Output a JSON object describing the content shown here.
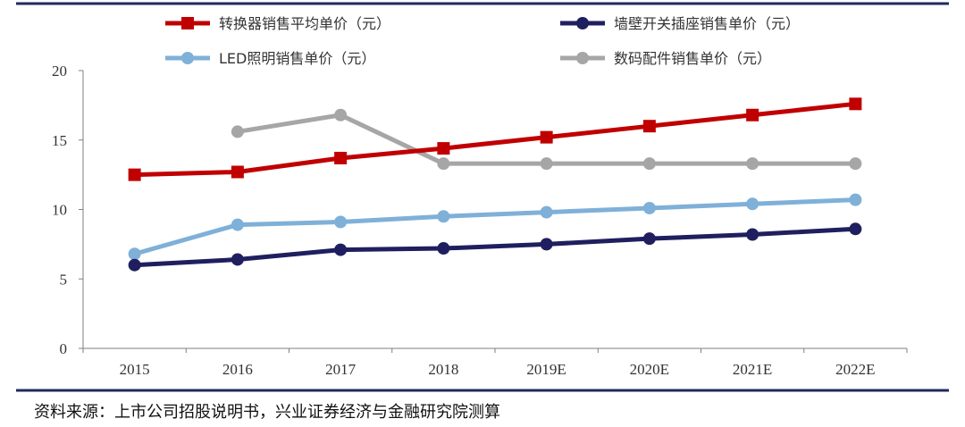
{
  "chart_data": {
    "type": "line",
    "categories": [
      "2015",
      "2016",
      "2017",
      "2018",
      "2019E",
      "2020E",
      "2021E",
      "2022E"
    ],
    "ylim": [
      0,
      20
    ],
    "yticks": [
      0,
      5,
      10,
      15,
      20
    ],
    "grid": false,
    "legend_position": "top",
    "series": [
      {
        "name": "转换器销售平均单价（元）",
        "color": "#C00000",
        "marker": "square",
        "values": [
          12.5,
          12.7,
          13.7,
          14.4,
          15.2,
          16.0,
          16.8,
          17.6
        ]
      },
      {
        "name": "墙壁开关插座销售单价（元）",
        "color": "#1F1F5F",
        "marker": "circle",
        "values": [
          6.0,
          6.4,
          7.1,
          7.2,
          7.5,
          7.9,
          8.2,
          8.6
        ]
      },
      {
        "name": "LED照明销售单价（元）",
        "color": "#7FB0D8",
        "marker": "circle",
        "values": [
          6.8,
          8.9,
          9.1,
          9.5,
          9.8,
          10.1,
          10.4,
          10.7
        ]
      },
      {
        "name": "数码配件销售单价（元）",
        "color": "#A6A6A6",
        "marker": "circle",
        "values": [
          null,
          15.6,
          16.8,
          13.3,
          13.3,
          13.3,
          13.3,
          13.3
        ]
      }
    ]
  },
  "footer": {
    "source": "资料来源：上市公司招股说明书，兴业证券经济与金融研究院测算",
    "rule_color": "#1F2A5C"
  }
}
